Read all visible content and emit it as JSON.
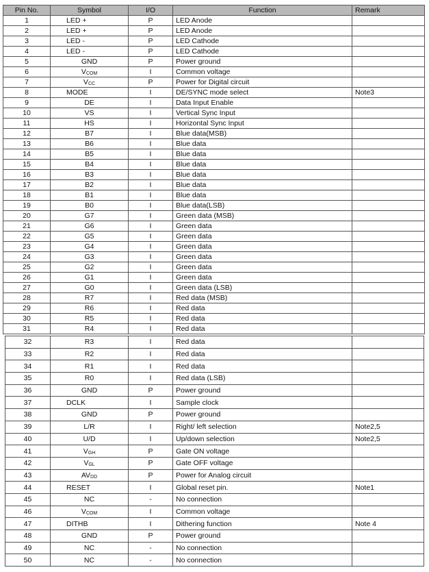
{
  "headers": {
    "pin": "Pin No.",
    "symbol": "Symbol",
    "io": "I/O",
    "function": "Function",
    "remark": "Remark"
  },
  "rows": [
    {
      "pin": "1",
      "symbol": "LED +",
      "sub": "",
      "io": "P",
      "function": "LED Anode",
      "remark": ""
    },
    {
      "pin": "2",
      "symbol": "LED +",
      "sub": "",
      "io": "P",
      "function": "LED Anode",
      "remark": ""
    },
    {
      "pin": "3",
      "symbol": "LED -",
      "sub": "",
      "io": "P",
      "function": "LED Cathode",
      "remark": ""
    },
    {
      "pin": "4",
      "symbol": "LED -",
      "sub": "",
      "io": "P",
      "function": "LED Cathode",
      "remark": ""
    },
    {
      "pin": "5",
      "symbol": "GND",
      "sub": "",
      "io": "P",
      "function": "Power ground",
      "remark": ""
    },
    {
      "pin": "6",
      "symbol": "V",
      "sub": "COM",
      "io": "I",
      "function": "Common voltage",
      "remark": ""
    },
    {
      "pin": "7",
      "symbol": "V",
      "sub": "CC",
      "io": "P",
      "function": "Power for Digital circuit",
      "remark": ""
    },
    {
      "pin": "8",
      "symbol": "MODE",
      "sub": "",
      "io": "I",
      "function": "DE/SYNC mode select",
      "remark": "Note3"
    },
    {
      "pin": "9",
      "symbol": "DE",
      "sub": "",
      "io": "I",
      "function": "Data Input Enable",
      "remark": ""
    },
    {
      "pin": "10",
      "symbol": "VS",
      "sub": "",
      "io": "I",
      "function": "Vertical Sync Input",
      "remark": ""
    },
    {
      "pin": "11",
      "symbol": "HS",
      "sub": "",
      "io": "I",
      "function": "Horizontal Sync Input",
      "remark": ""
    },
    {
      "pin": "12",
      "symbol": "B7",
      "sub": "",
      "io": "I",
      "function": "Blue data(MSB)",
      "remark": ""
    },
    {
      "pin": "13",
      "symbol": "B6",
      "sub": "",
      "io": "I",
      "function": "Blue data",
      "remark": ""
    },
    {
      "pin": "14",
      "symbol": "B5",
      "sub": "",
      "io": "I",
      "function": "Blue data",
      "remark": ""
    },
    {
      "pin": "15",
      "symbol": "B4",
      "sub": "",
      "io": "I",
      "function": "Blue data",
      "remark": ""
    },
    {
      "pin": "16",
      "symbol": "B3",
      "sub": "",
      "io": "I",
      "function": "Blue data",
      "remark": ""
    },
    {
      "pin": "17",
      "symbol": "B2",
      "sub": "",
      "io": "I",
      "function": "Blue data",
      "remark": ""
    },
    {
      "pin": "18",
      "symbol": "B1",
      "sub": "",
      "io": "I",
      "function": "Blue data",
      "remark": ""
    },
    {
      "pin": "19",
      "symbol": "B0",
      "sub": "",
      "io": "I",
      "function": "Blue data(LSB)",
      "remark": ""
    },
    {
      "pin": "20",
      "symbol": "G7",
      "sub": "",
      "io": "I",
      "function": "Green data (MSB)",
      "remark": ""
    },
    {
      "pin": "21",
      "symbol": "G6",
      "sub": "",
      "io": "I",
      "function": "Green data",
      "remark": ""
    },
    {
      "pin": "22",
      "symbol": "G5",
      "sub": "",
      "io": "I",
      "function": "Green data",
      "remark": ""
    },
    {
      "pin": "23",
      "symbol": "G4",
      "sub": "",
      "io": "I",
      "function": "Green data",
      "remark": ""
    },
    {
      "pin": "24",
      "symbol": "G3",
      "sub": "",
      "io": "I",
      "function": "Green data",
      "remark": ""
    },
    {
      "pin": "25",
      "symbol": "G2",
      "sub": "",
      "io": "I",
      "function": "Green data",
      "remark": ""
    },
    {
      "pin": "26",
      "symbol": "G1",
      "sub": "",
      "io": "I",
      "function": "Green data",
      "remark": ""
    },
    {
      "pin": "27",
      "symbol": "G0",
      "sub": "",
      "io": "I",
      "function": "Green data (LSB)",
      "remark": ""
    },
    {
      "pin": "28",
      "symbol": "R7",
      "sub": "",
      "io": "I",
      "function": "Red data (MSB)",
      "remark": ""
    },
    {
      "pin": "29",
      "symbol": "R6",
      "sub": "",
      "io": "I",
      "function": "Red data",
      "remark": ""
    },
    {
      "pin": "30",
      "symbol": "R5",
      "sub": "",
      "io": "I",
      "function": "Red data",
      "remark": ""
    },
    {
      "pin": "31",
      "symbol": "R4",
      "sub": "",
      "io": "I",
      "function": "Red data",
      "remark": ""
    },
    {
      "pin": "32",
      "symbol": "R3",
      "sub": "",
      "io": "I",
      "function": "Red data",
      "remark": ""
    },
    {
      "pin": "33",
      "symbol": "R2",
      "sub": "",
      "io": "I",
      "function": "Red data",
      "remark": ""
    },
    {
      "pin": "34",
      "symbol": "R1",
      "sub": "",
      "io": "I",
      "function": "Red data",
      "remark": ""
    },
    {
      "pin": "35",
      "symbol": "R0",
      "sub": "",
      "io": "I",
      "function": "Red data (LSB)",
      "remark": ""
    },
    {
      "pin": "36",
      "symbol": "GND",
      "sub": "",
      "io": "P",
      "function": "Power ground",
      "remark": ""
    },
    {
      "pin": "37",
      "symbol": "DCLK",
      "sub": "",
      "io": "I",
      "function": "Sample clock",
      "remark": ""
    },
    {
      "pin": "38",
      "symbol": "GND",
      "sub": "",
      "io": "P",
      "function": "Power ground",
      "remark": ""
    },
    {
      "pin": "39",
      "symbol": "L/R",
      "sub": "",
      "io": "I",
      "function": "Right/ left selection",
      "remark": "Note2,5"
    },
    {
      "pin": "40",
      "symbol": "U/D",
      "sub": "",
      "io": "I",
      "function": "Up/down selection",
      "remark": "Note2,5"
    },
    {
      "pin": "41",
      "symbol": "V",
      "sub": "GH",
      "io": "P",
      "function": "Gate ON voltage",
      "remark": ""
    },
    {
      "pin": "42",
      "symbol": "V",
      "sub": "GL",
      "io": "P",
      "function": "Gate OFF voltage",
      "remark": ""
    },
    {
      "pin": "43",
      "symbol": "AV",
      "sub": "DD",
      "io": "P",
      "function": "Power for Analog circuit",
      "remark": ""
    },
    {
      "pin": "44",
      "symbol": "RESET",
      "sub": "",
      "io": "I",
      "function": "Global reset pin.",
      "remark": "Note1"
    },
    {
      "pin": "45",
      "symbol": "NC",
      "sub": "",
      "io": "-",
      "function": "No connection",
      "remark": ""
    },
    {
      "pin": "46",
      "symbol": "V",
      "sub": "COM",
      "io": "I",
      "function": "Common voltage",
      "remark": ""
    },
    {
      "pin": "47",
      "symbol": "DITHB",
      "sub": "",
      "io": "I",
      "function": "Dithering function",
      "remark": "Note 4"
    },
    {
      "pin": "48",
      "symbol": "GND",
      "sub": "",
      "io": "P",
      "function": "Power ground",
      "remark": ""
    },
    {
      "pin": "49",
      "symbol": "NC",
      "sub": "",
      "io": "-",
      "function": "No connection",
      "remark": ""
    },
    {
      "pin": "50",
      "symbol": "NC",
      "sub": "",
      "io": "-",
      "function": "No connection",
      "remark": ""
    }
  ]
}
